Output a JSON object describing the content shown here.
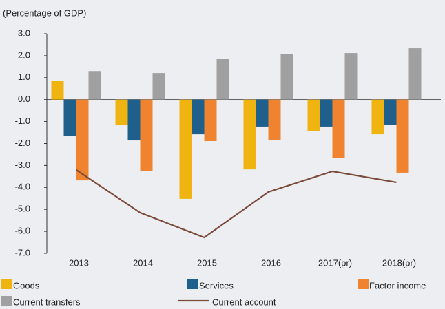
{
  "chart_data": {
    "type": "bar",
    "y_axis_label": "(Percentage of GDP)",
    "categories": [
      "2013",
      "2014",
      "2015",
      "2016",
      "2017(pr)",
      "2018(pr)"
    ],
    "series": [
      {
        "name": "Goods",
        "color": "#f0b410",
        "values": [
          0.85,
          -1.17,
          -4.52,
          -3.18,
          -1.45,
          -1.58
        ]
      },
      {
        "name": "Services",
        "color": "#1f5f8b",
        "values": [
          -1.64,
          -1.86,
          -1.58,
          -1.23,
          -1.23,
          -1.14
        ]
      },
      {
        "name": "Factor income",
        "color": "#f0832f",
        "values": [
          -3.68,
          -3.24,
          -1.89,
          -1.83,
          -2.67,
          -3.33
        ]
      },
      {
        "name": "Current transfers",
        "color": "#a0a0a0",
        "values": [
          1.3,
          1.21,
          1.84,
          2.06,
          2.12,
          2.34
        ]
      },
      {
        "name": "Current account",
        "color": "#7b4a3a",
        "type": "line",
        "values": [
          -3.2,
          -5.15,
          -6.28,
          -4.21,
          -3.27,
          -3.77
        ]
      }
    ],
    "ylim": [
      -7,
      3
    ],
    "yticks": [
      {
        "value": 3,
        "label": "3.0"
      },
      {
        "value": 2,
        "label": "2.0"
      },
      {
        "value": 1,
        "label": "1.0"
      },
      {
        "value": 0,
        "label": "0.0"
      },
      {
        "value": -1,
        "label": "-1.0"
      },
      {
        "value": -2,
        "label": "-2.0"
      },
      {
        "value": -3,
        "label": "-3.0"
      },
      {
        "value": -4,
        "label": "-4.0"
      },
      {
        "value": -5,
        "label": "-5.0"
      },
      {
        "value": -6,
        "label": "-6.0"
      },
      {
        "value": -7,
        "label": "-7.0"
      }
    ]
  }
}
